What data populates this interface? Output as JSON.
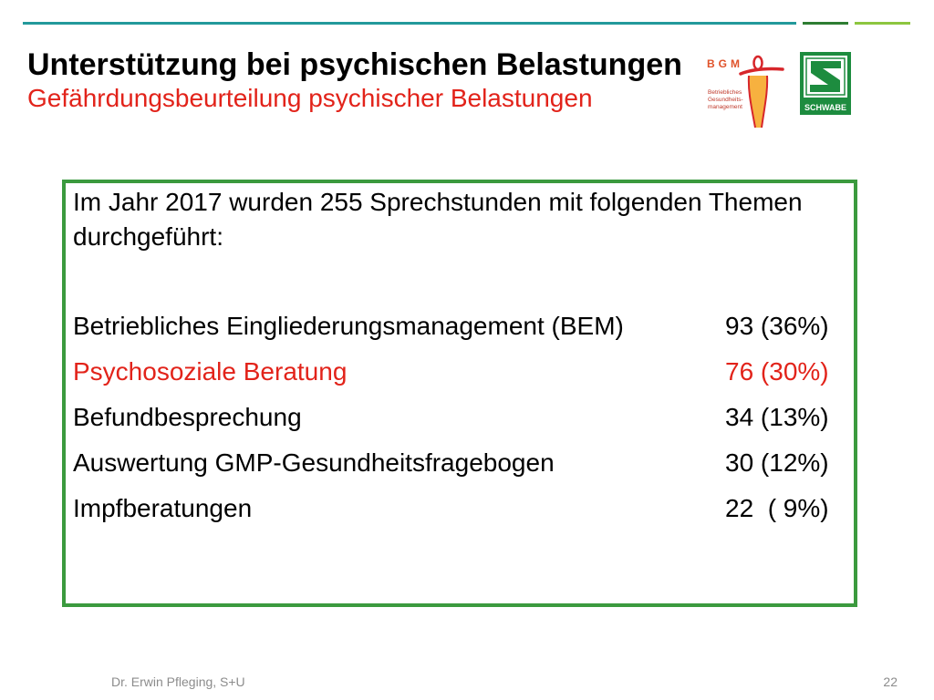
{
  "slide": {
    "title": "Unterstützung bei psychischen Belastungen",
    "subtitle": "Gefährdungsbeurteilung psychischer Belastungen",
    "colors": {
      "title": "#000000",
      "subtitle": "#e2231a",
      "top_rule": [
        "#23999b",
        "#2e7d32",
        "#8dc63f"
      ],
      "box_border": "#3b9a3e",
      "footer": "#8c8c8c"
    }
  },
  "logos": {
    "bgm": {
      "letters": "BGM",
      "caption": [
        "Betriebliches",
        "Gesundheits-",
        "management"
      ]
    },
    "schwabe": {
      "wordmark": "SCHWABE"
    }
  },
  "content": {
    "intro": "Im Jahr 2017 wurden 255 Sprechstunden mit folgenden Themen durchgeführt:",
    "topics": [
      {
        "label": "Betriebliches Eingliederungsmanagement (BEM)",
        "value": "93 (36%)",
        "color": "#000000"
      },
      {
        "label": "Psychosoziale Beratung",
        "value": "76 (30%)",
        "color": "#e2231a"
      },
      {
        "label": "Befundbesprechung",
        "value": "34 (13%)",
        "color": "#000000"
      },
      {
        "label": "Auswertung GMP-Gesundheitsfragebogen",
        "value": "30 (12%)",
        "color": "#000000"
      },
      {
        "label": "Impfberatungen",
        "value": "22  ( 9%)",
        "color": "#000000"
      }
    ]
  },
  "footer": {
    "author": "Dr. Erwin Pfleging, S+U",
    "page_number": "22"
  }
}
